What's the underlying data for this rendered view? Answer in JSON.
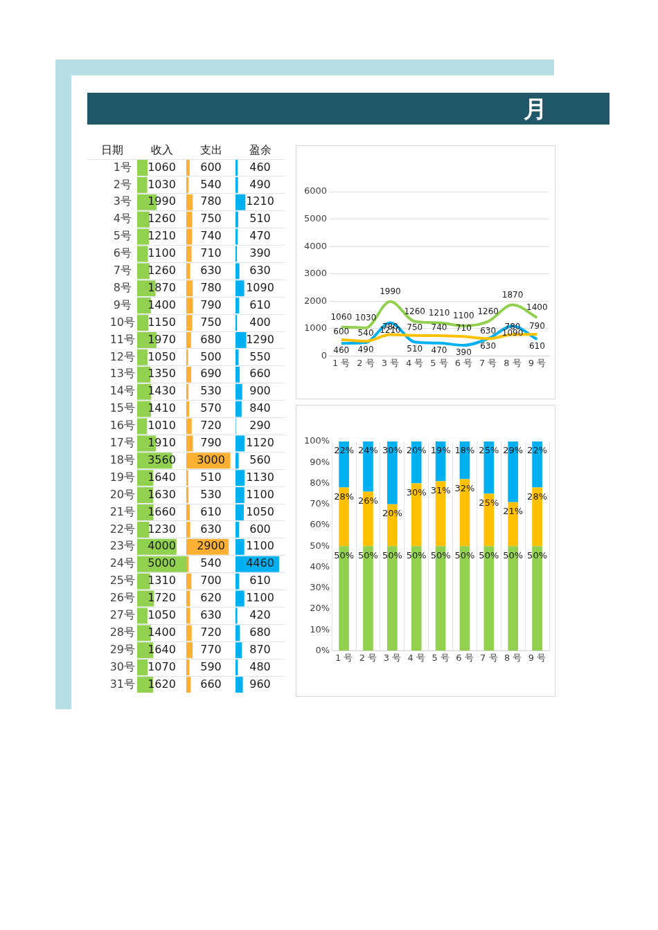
{
  "chart_data": [
    {
      "type": "other",
      "title": "月"
    },
    {
      "type": "bar",
      "orientation": "horizontal",
      "title": "收入",
      "ylabel": "日期",
      "categories": [
        "1号",
        "2号",
        "3号",
        "4号",
        "5号",
        "6号",
        "7号",
        "8号",
        "9号",
        "10号",
        "11号",
        "12号",
        "13号",
        "14号",
        "15号",
        "16号",
        "17号",
        "18号",
        "19号",
        "20号",
        "21号",
        "22号",
        "23号",
        "24号",
        "25号",
        "26号",
        "27号",
        "28号",
        "29号",
        "30号",
        "31号"
      ],
      "values": [
        1060,
        1030,
        1990,
        1260,
        1210,
        1100,
        1260,
        1870,
        1400,
        1150,
        1970,
        1050,
        1350,
        1430,
        1410,
        1010,
        1910,
        3560,
        1640,
        1630,
        1660,
        1230,
        4000,
        5000,
        1310,
        1720,
        1050,
        1400,
        1640,
        1070,
        1620
      ],
      "color": "#92d050",
      "xlim": [
        0,
        5000
      ],
      "tick_labels": "y",
      "grid": "y",
      "data_labels": true
    },
    {
      "type": "bar",
      "orientation": "horizontal",
      "title": "支出",
      "categories": [
        null,
        null,
        null,
        null,
        null,
        null,
        null,
        null,
        null,
        null,
        null,
        null,
        null,
        null,
        null,
        null,
        null,
        null,
        null,
        null,
        null,
        null,
        null,
        null,
        null,
        null,
        null,
        null,
        null,
        null,
        null
      ],
      "values": [
        600,
        540,
        780,
        750,
        740,
        710,
        630,
        780,
        790,
        750,
        680,
        500,
        690,
        530,
        570,
        720,
        790,
        3000,
        510,
        530,
        610,
        630,
        2900,
        540,
        700,
        620,
        630,
        720,
        770,
        590,
        660
      ],
      "color": "#fbb034",
      "xlim": [
        400,
        3300
      ],
      "tick_labels": false,
      "grid": "y",
      "data_labels": true
    },
    {
      "type": "bar",
      "orientation": "horizontal",
      "title": "盈余",
      "categories": [
        null,
        null,
        null,
        null,
        null,
        null,
        null,
        null,
        null,
        null,
        null,
        null,
        null,
        null,
        null,
        null,
        null,
        null,
        null,
        null,
        null,
        null,
        null,
        null,
        null,
        null,
        null,
        null,
        null,
        null,
        null
      ],
      "values": [
        460,
        490,
        1210,
        510,
        470,
        390,
        630,
        1090,
        610,
        400,
        1290,
        550,
        660,
        900,
        840,
        290,
        1120,
        560,
        1130,
        1100,
        1050,
        600,
        1100,
        4460,
        610,
        1100,
        420,
        680,
        870,
        480,
        960
      ],
      "color": "#00b0f0",
      "xlim": [
        250,
        5000
      ],
      "tick_labels": false,
      "grid": "y",
      "data_labels": true
    },
    {
      "type": "line",
      "categories": [
        "1 号",
        "2 号",
        "3 号",
        "4 号",
        "5 号",
        "6 号",
        "7 号",
        "8 号",
        "9 号"
      ],
      "series": [
        {
          "color": "#92d050",
          "values": [
            1060,
            1030,
            1990,
            1260,
            1210,
            1100,
            1260,
            1870,
            1400
          ]
        },
        {
          "color": "#ffc000",
          "values": [
            600,
            540,
            780,
            750,
            740,
            710,
            630,
            780,
            790
          ]
        },
        {
          "color": "#00b0f0",
          "values": [
            460,
            490,
            1210,
            510,
            470,
            390,
            630,
            1090,
            610
          ]
        }
      ],
      "ylim": [
        0,
        6000
      ],
      "yticks": [
        0,
        1000,
        2000,
        3000,
        4000,
        5000,
        6000
      ],
      "grid": "y",
      "marker": "none",
      "data_labels": true
    },
    {
      "type": "bar",
      "stacked": true,
      "categories": [
        "1 号",
        "2 号",
        "3 号",
        "4 号",
        "5 号",
        "6 号",
        "7 号",
        "8 号",
        "9 号"
      ],
      "series": [
        {
          "color": "#92d050",
          "values": [
            50,
            50,
            50,
            50,
            50,
            50,
            50,
            50,
            50
          ],
          "value_labels": [
            "50%",
            "50%",
            "50%",
            "50%",
            "50%",
            "50%",
            "50%",
            "50%",
            "50%"
          ]
        },
        {
          "color": "#ffc000",
          "values": [
            28,
            26,
            20,
            30,
            31,
            32,
            25,
            21,
            28
          ],
          "value_labels": [
            "28%",
            "26%",
            "20%",
            "30%",
            "31%",
            "32%",
            "25%",
            "21%",
            "28%"
          ]
        },
        {
          "color": "#00b0f0",
          "values": [
            22,
            24,
            30,
            20,
            19,
            18,
            25,
            29,
            22
          ],
          "value_labels": [
            "22%",
            "24%",
            "30%",
            "20%",
            "19%",
            "18%",
            "25%",
            "29%",
            "22%"
          ]
        }
      ],
      "ylim": [
        0,
        100
      ],
      "yticks": [
        {
          "value": 0,
          "label": "0%"
        },
        {
          "value": 10,
          "label": "10%"
        },
        {
          "value": 20,
          "label": "20%"
        },
        {
          "value": 30,
          "label": "30%"
        },
        {
          "value": 40,
          "label": "40%"
        },
        {
          "value": 50,
          "label": "50%"
        },
        {
          "value": 60,
          "label": "60%"
        },
        {
          "value": 70,
          "label": "70%"
        },
        {
          "value": 80,
          "label": "80%"
        },
        {
          "value": 90,
          "label": "90%"
        },
        {
          "value": 100,
          "label": "100%"
        }
      ],
      "grid": "x"
    }
  ]
}
